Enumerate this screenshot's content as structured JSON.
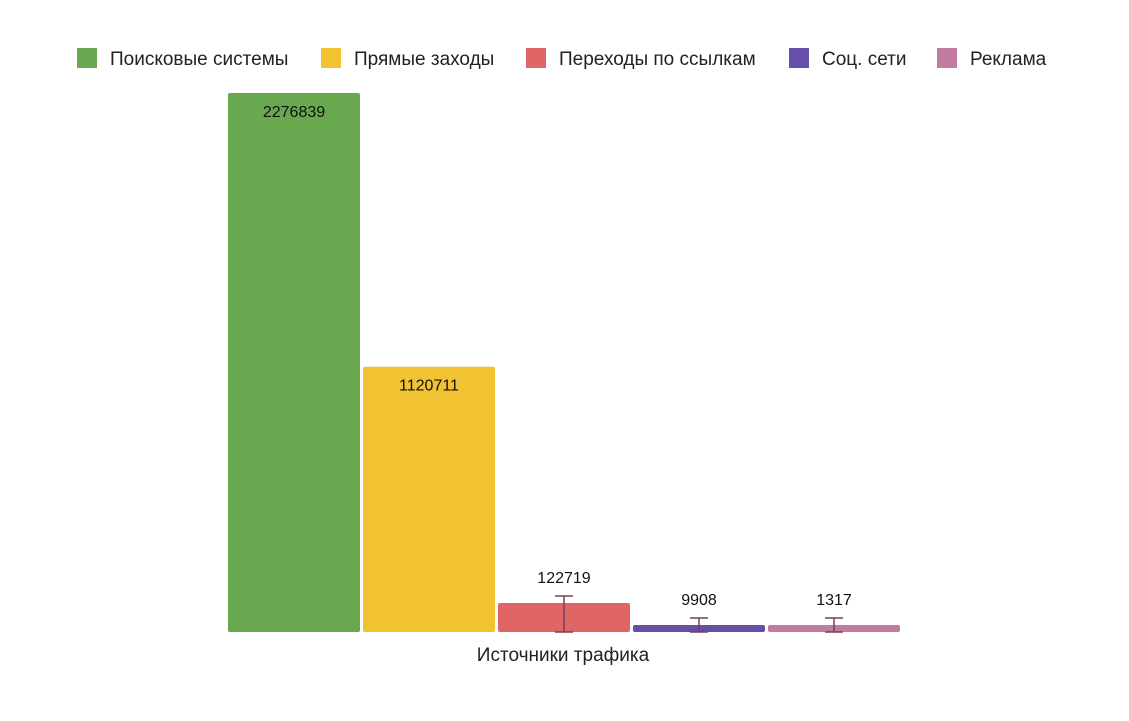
{
  "chart_data": {
    "type": "bar",
    "xlabel": "Источники трафика",
    "legend_position": "top",
    "grid": false,
    "series": [
      {
        "name": "Поисковые системы",
        "value": 2276839,
        "label": "2276839",
        "color": "#6aa84f"
      },
      {
        "name": "Прямые заходы",
        "value": 1120711,
        "label": "1120711",
        "color": "#f1c232"
      },
      {
        "name": "Переходы по ссылкам",
        "value": 122719,
        "label": "122719",
        "color": "#e06666"
      },
      {
        "name": "Соц. сети",
        "value": 9908,
        "label": "9908",
        "color": "#674ea7"
      },
      {
        "name": "Реклама",
        "value": 1317,
        "label": "1317",
        "color": "#c27ba0"
      }
    ]
  }
}
